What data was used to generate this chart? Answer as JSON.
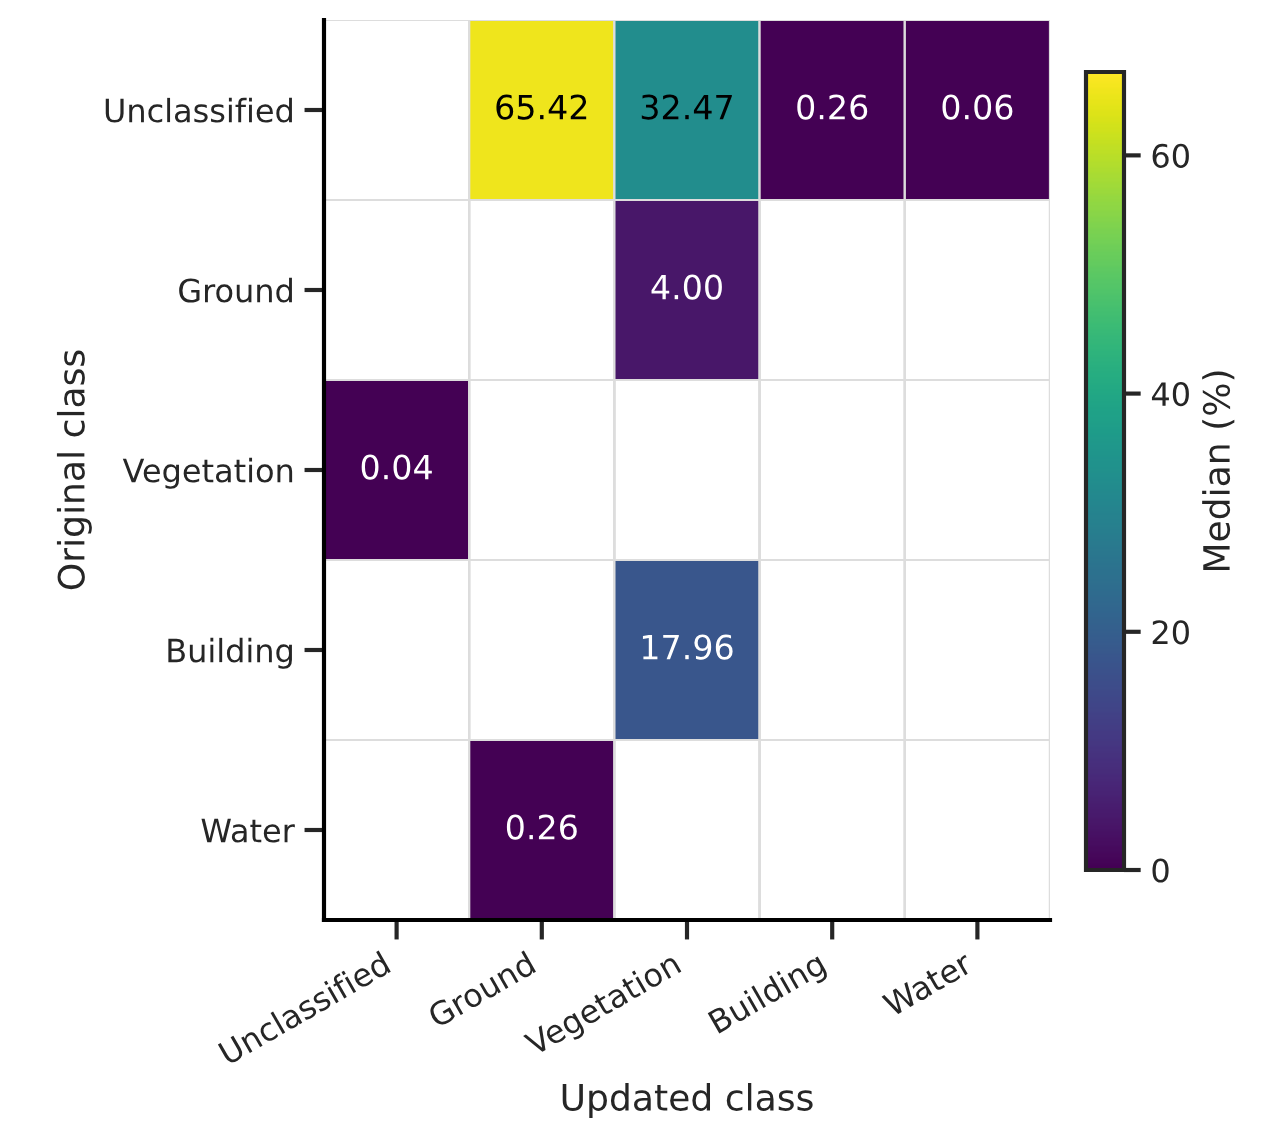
{
  "chart_data": {
    "type": "heatmap",
    "xlabel": "Updated class",
    "ylabel": "Original class",
    "clabel": "Median (%)",
    "categories": [
      "Unclassified",
      "Ground",
      "Vegetation",
      "Building",
      "Water"
    ],
    "y_categories": [
      "Unclassified",
      "Ground",
      "Vegetation",
      "Building",
      "Water"
    ],
    "cells": [
      [
        null,
        65.42,
        32.47,
        0.26,
        0.06
      ],
      [
        null,
        null,
        4.0,
        null,
        null
      ],
      [
        0.04,
        null,
        null,
        null,
        null
      ],
      [
        null,
        null,
        17.96,
        null,
        null
      ],
      [
        null,
        0.26,
        null,
        null,
        null
      ]
    ],
    "cell_labels": [
      [
        null,
        "65.42",
        "32.47",
        "0.26",
        "0.06"
      ],
      [
        null,
        null,
        "4.00",
        null,
        null
      ],
      [
        "0.04",
        null,
        null,
        null,
        null
      ],
      [
        null,
        null,
        "17.96",
        null,
        null
      ],
      [
        null,
        "0.26",
        null,
        null,
        null
      ]
    ],
    "clim": [
      0,
      67
    ],
    "cticks": [
      0,
      20,
      40,
      60
    ]
  }
}
